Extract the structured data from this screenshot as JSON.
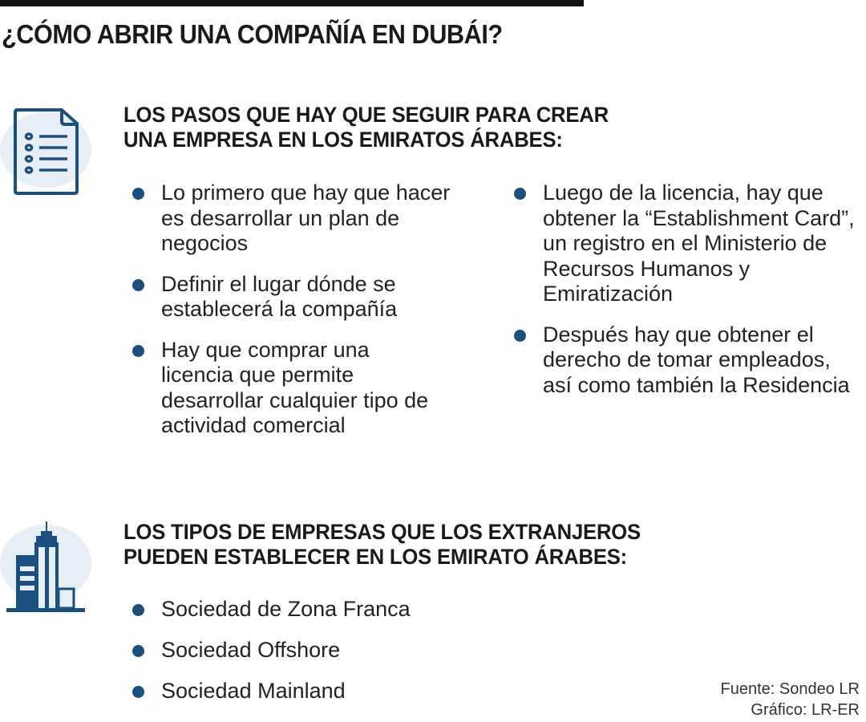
{
  "title": "¿CÓMO ABRIR UNA COMPAÑÍA EN DUBÁI?",
  "colors": {
    "accent": "#1b4f7d",
    "icon_bg": "#e6eef8"
  },
  "section1": {
    "icon": "document-list-icon",
    "heading_line1": "LOS PASOS QUE HAY QUE SEGUIR PARA CREAR",
    "heading_line2": "UNA EMPRESA EN LOS EMIRATOS ÁRABES:",
    "left_items": [
      "Lo primero que hay que hacer es desarrollar un plan de negocios",
      "Definir el lugar dónde se establecerá la compañía",
      "Hay que comprar una licencia que permite desarrollar cualquier tipo de actividad comercial"
    ],
    "right_items": [
      "Luego de la licencia, hay que obtener la “Establishment Card”, un registro en el Ministerio de Recursos Humanos y Emiratización",
      "Después hay que obtener el derecho de tomar empleados, así como también la Residencia"
    ]
  },
  "section2": {
    "icon": "buildings-icon",
    "heading_line1": "LOS TIPOS DE EMPRESAS QUE LOS EXTRANJEROS",
    "heading_line2": "PUEDEN ESTABLECER EN LOS EMIRATO ÁRABES:",
    "items": [
      "Sociedad de Zona Franca",
      "Sociedad Offshore",
      "Sociedad Mainland"
    ]
  },
  "source": {
    "line1": "Fuente: Sondeo LR",
    "line2": "Gráfico: LR-ER"
  }
}
